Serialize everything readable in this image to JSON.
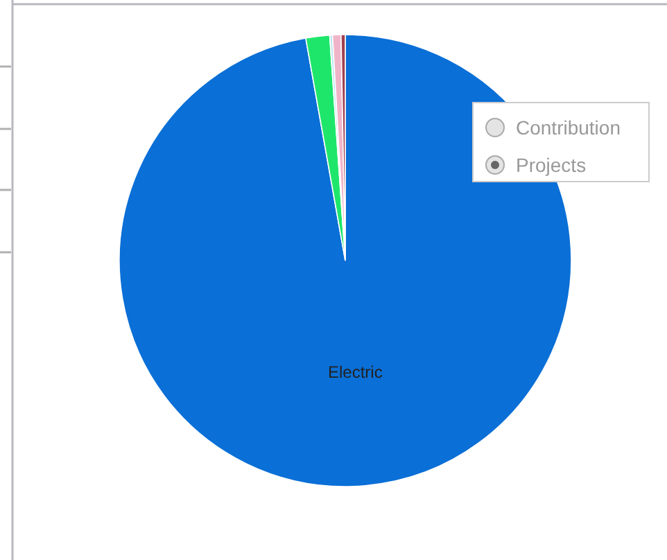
{
  "chart_data": {
    "type": "pie",
    "categories": [
      "Electric",
      null,
      null,
      null,
      null
    ],
    "values": [
      97.2,
      1.7,
      0.2,
      0.6,
      0.3
    ],
    "colors": [
      "#0a6fd6",
      "#1ee66a",
      "#bfe8f0",
      "#f0b4c8",
      "#a04050"
    ],
    "annotations": [
      "Contribution",
      "Projects"
    ]
  }
}
